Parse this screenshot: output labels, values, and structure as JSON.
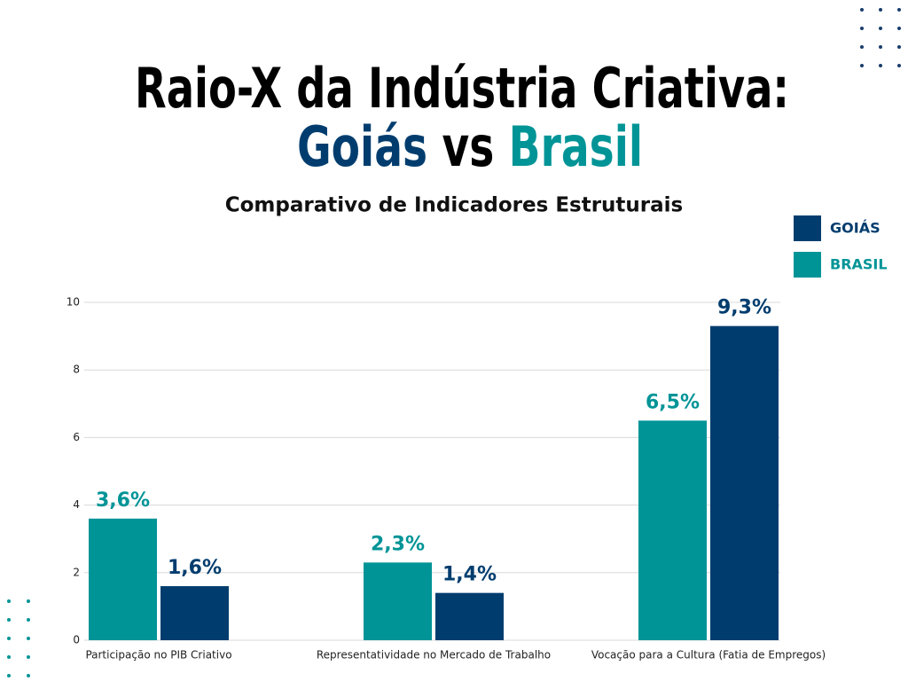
{
  "chart_data": {
    "type": "bar",
    "title": "Raio-X da Indústria Criativa:",
    "title_line2": [
      "Goiás",
      "vs",
      "Brasil"
    ],
    "subtitle": "Comparativo de Indicadores Estruturais",
    "categories": [
      "Participação no PIB Criativo",
      "Representatividade no Mercado de Trabalho",
      "Vocação para a Cultura (Fatia de Empregos)"
    ],
    "series": [
      {
        "name": "BRASIL",
        "color": "#009497",
        "values": [
          3.6,
          2.3,
          6.5
        ],
        "value_labels": [
          "3,6%",
          "2,3%",
          "6,5%"
        ]
      },
      {
        "name": "GOIÁS",
        "color": "#003d6e",
        "values": [
          1.6,
          1.4,
          9.3
        ],
        "value_labels": [
          "1,6%",
          "1,4%",
          "9,3%"
        ]
      }
    ],
    "ylim": [
      0,
      10
    ],
    "yticks": [
      0,
      2,
      4,
      6,
      8,
      10
    ],
    "grid": true,
    "legend": "top-right"
  }
}
